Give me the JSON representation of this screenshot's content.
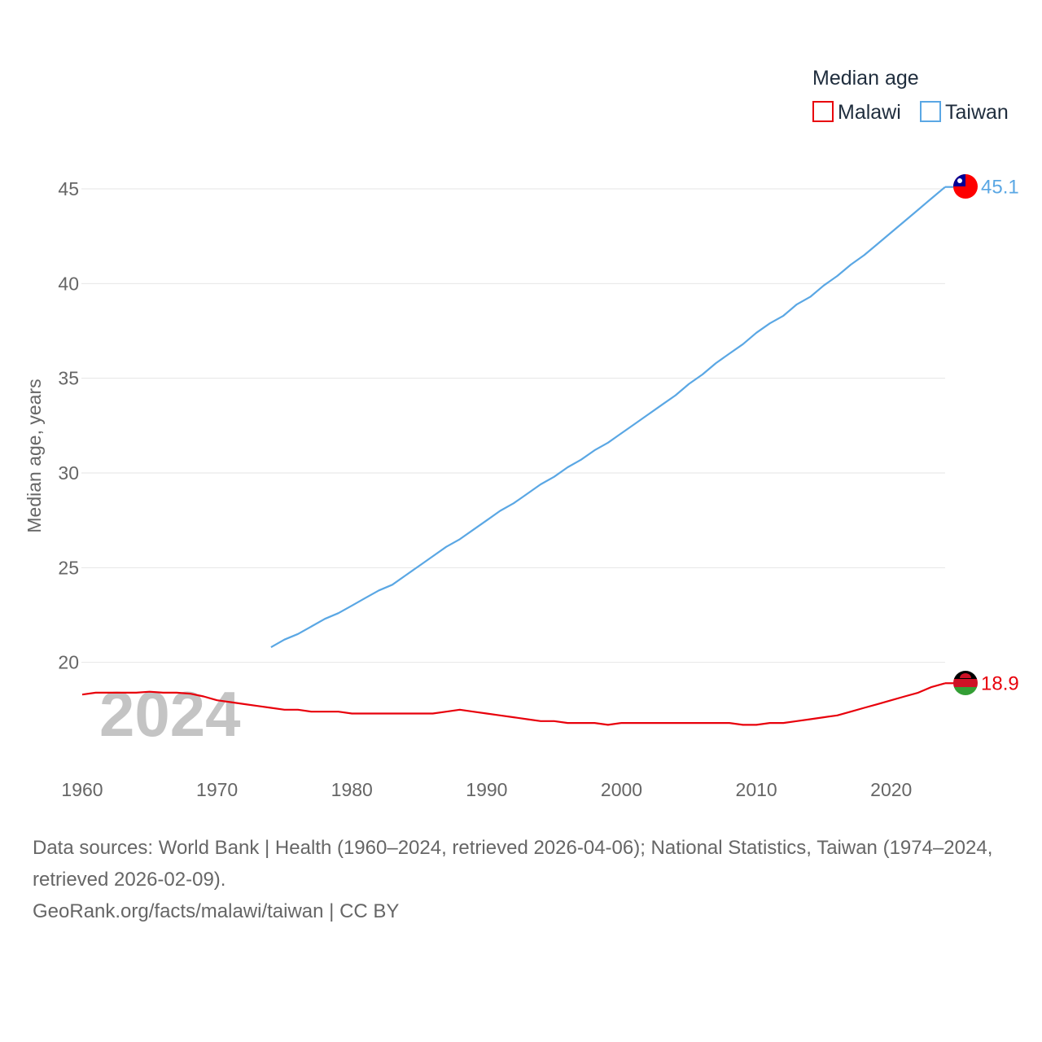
{
  "legend": {
    "title": "Median age",
    "items": [
      "Malawi",
      "Taiwan"
    ]
  },
  "colors": {
    "malawi": "#e8000b",
    "taiwan": "#5aa7e4",
    "grid": "#e6e6e6",
    "tick": "#666666"
  },
  "year_overlay": "2024",
  "footer": {
    "line1": "Data sources: World Bank | Health (1960–2024, retrieved 2026-04-06); National Statistics, Taiwan (1974–2024, retrieved 2026-02-09).",
    "line2": "GeoRank.org/facts/malawi/taiwan | CC BY"
  },
  "chart_data": {
    "type": "line",
    "title": "Median age",
    "xlabel": "",
    "ylabel": "Median age, years",
    "xlim": [
      1960,
      2024
    ],
    "ylim": [
      15,
      45
    ],
    "x_ticks": [
      1960,
      1970,
      1980,
      1990,
      2000,
      2010,
      2020
    ],
    "y_ticks": [
      20,
      25,
      30,
      35,
      40,
      45
    ],
    "grid": true,
    "legend_position": "top-right",
    "series": [
      {
        "name": "Malawi",
        "end_label": "18.9",
        "x": [
          1960,
          1961,
          1962,
          1963,
          1964,
          1965,
          1966,
          1967,
          1968,
          1969,
          1970,
          1971,
          1972,
          1973,
          1974,
          1975,
          1976,
          1977,
          1978,
          1979,
          1980,
          1981,
          1982,
          1983,
          1984,
          1985,
          1986,
          1987,
          1988,
          1989,
          1990,
          1991,
          1992,
          1993,
          1994,
          1995,
          1996,
          1997,
          1998,
          1999,
          2000,
          2001,
          2002,
          2003,
          2004,
          2005,
          2006,
          2007,
          2008,
          2009,
          2010,
          2011,
          2012,
          2013,
          2014,
          2015,
          2016,
          2017,
          2018,
          2019,
          2020,
          2021,
          2022,
          2023,
          2024
        ],
        "y": [
          18.3,
          18.4,
          18.4,
          18.4,
          18.4,
          18.45,
          18.4,
          18.4,
          18.35,
          18.2,
          18.0,
          17.9,
          17.8,
          17.7,
          17.6,
          17.5,
          17.5,
          17.4,
          17.4,
          17.4,
          17.3,
          17.3,
          17.3,
          17.3,
          17.3,
          17.3,
          17.3,
          17.4,
          17.5,
          17.4,
          17.3,
          17.2,
          17.1,
          17.0,
          16.9,
          16.9,
          16.8,
          16.8,
          16.8,
          16.7,
          16.8,
          16.8,
          16.8,
          16.8,
          16.8,
          16.8,
          16.8,
          16.8,
          16.8,
          16.7,
          16.7,
          16.8,
          16.8,
          16.9,
          17.0,
          17.1,
          17.2,
          17.4,
          17.6,
          17.8,
          18.0,
          18.2,
          18.4,
          18.7,
          18.9
        ]
      },
      {
        "name": "Taiwan",
        "end_label": "45.1",
        "x": [
          1974,
          1975,
          1976,
          1977,
          1978,
          1979,
          1980,
          1981,
          1982,
          1983,
          1984,
          1985,
          1986,
          1987,
          1988,
          1989,
          1990,
          1991,
          1992,
          1993,
          1994,
          1995,
          1996,
          1997,
          1998,
          1999,
          2000,
          2001,
          2002,
          2003,
          2004,
          2005,
          2006,
          2007,
          2008,
          2009,
          2010,
          2011,
          2012,
          2013,
          2014,
          2015,
          2016,
          2017,
          2018,
          2019,
          2020,
          2021,
          2022,
          2023,
          2024
        ],
        "y": [
          20.8,
          21.2,
          21.5,
          21.9,
          22.3,
          22.6,
          23.0,
          23.4,
          23.8,
          24.1,
          24.6,
          25.1,
          25.6,
          26.1,
          26.5,
          27.0,
          27.5,
          28.0,
          28.4,
          28.9,
          29.4,
          29.8,
          30.3,
          30.7,
          31.2,
          31.6,
          32.1,
          32.6,
          33.1,
          33.6,
          34.1,
          34.7,
          35.2,
          35.8,
          36.3,
          36.8,
          37.4,
          37.9,
          38.3,
          38.9,
          39.3,
          39.9,
          40.4,
          41.0,
          41.5,
          42.1,
          42.7,
          43.3,
          43.9,
          44.5,
          45.1
        ]
      }
    ]
  }
}
